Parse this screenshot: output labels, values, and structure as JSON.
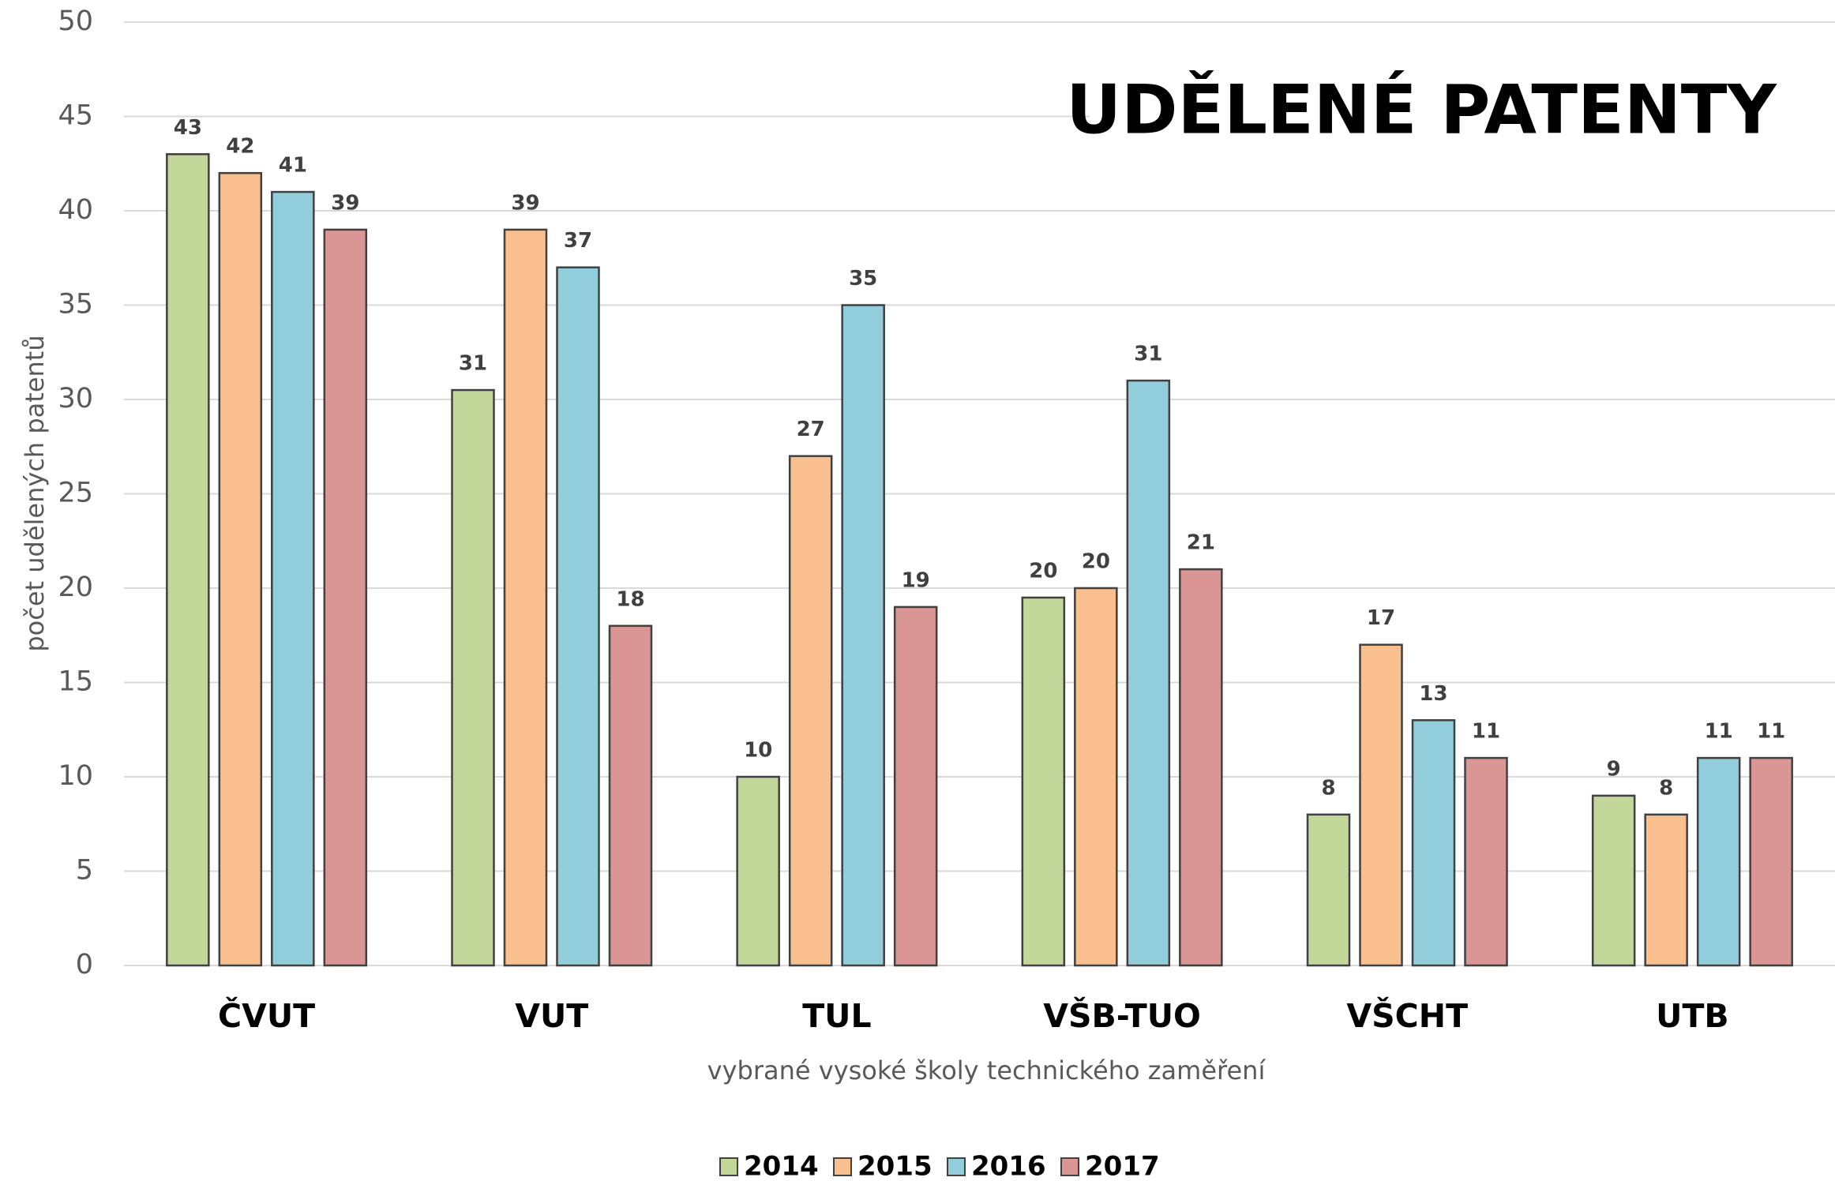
{
  "chart_data": {
    "type": "bar",
    "title": "UDĚLENÉ PATENTY",
    "x_label": "vybrané vysoké školy technického zaměření",
    "y_label": "počet udělených patentů",
    "categories": [
      "ČVUT",
      "VUT",
      "TUL",
      "VŠB-TUO",
      "VŠCHT",
      "UTB"
    ],
    "series": [
      {
        "name": "2014",
        "color": "#c4d79b",
        "values": [
          43,
          30.5,
          10,
          19.5,
          8,
          9
        ],
        "value_labels": [
          "43",
          "31",
          "10",
          "20",
          "8",
          "9"
        ]
      },
      {
        "name": "2015",
        "color": "#fabf8f",
        "values": [
          42,
          39,
          27,
          20,
          17,
          8
        ],
        "value_labels": [
          "42",
          "39",
          "27",
          "20",
          "17",
          "8"
        ]
      },
      {
        "name": "2016",
        "color": "#92cddc",
        "values": [
          41,
          37,
          35,
          31,
          13,
          11
        ],
        "value_labels": [
          "41",
          "37",
          "35",
          "31",
          "13",
          "11"
        ]
      },
      {
        "name": "2017",
        "color": "#da9694",
        "values": [
          39,
          18,
          19,
          21,
          11,
          11
        ],
        "value_labels": [
          "39",
          "18",
          "19",
          "21",
          "11",
          "11"
        ]
      }
    ],
    "ylim": [
      0,
      50
    ],
    "yticks": [
      0,
      5,
      10,
      15,
      20,
      25,
      30,
      35,
      40,
      45,
      50
    ],
    "grid": true,
    "legend": "bottom"
  }
}
